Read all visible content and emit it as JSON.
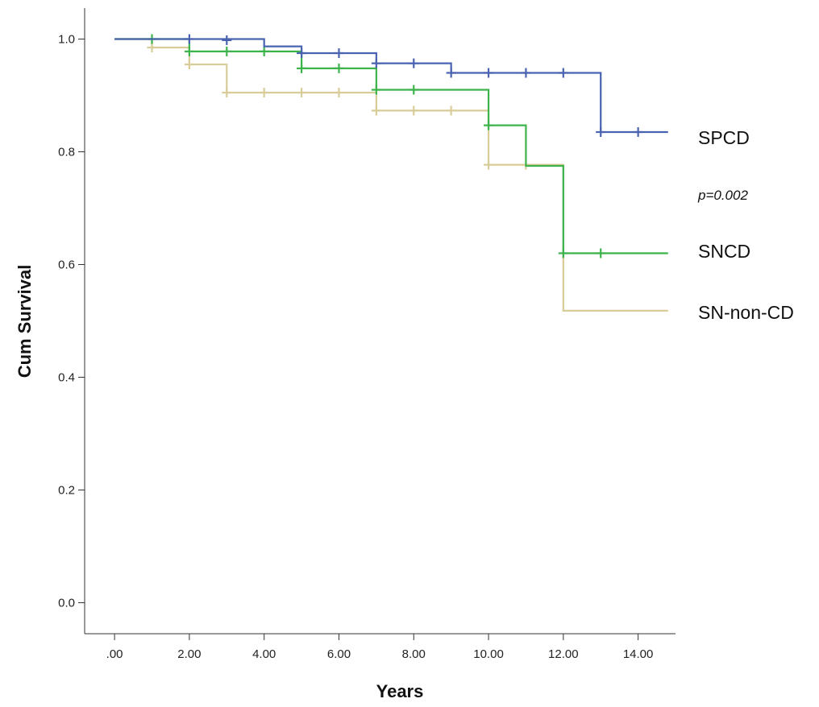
{
  "chart_data": {
    "type": "line",
    "xlabel": "Years",
    "ylabel": "Cum Survival",
    "xlim": [
      -0.8,
      15
    ],
    "ylim": [
      -0.055,
      1.055
    ],
    "x_ticks": [
      0,
      2,
      4,
      6,
      8,
      10,
      12,
      14
    ],
    "x_tick_labels": [
      ".00",
      "2.00",
      "4.00",
      "6.00",
      "8.00",
      "10.00",
      "12.00",
      "14.00"
    ],
    "y_ticks": [
      0,
      0.2,
      0.4,
      0.6,
      0.8,
      1.0
    ],
    "y_tick_labels": [
      "0.0",
      "0.2",
      "0.4",
      "0.6",
      "0.8",
      "1.0"
    ],
    "annotation": "p=0.002",
    "series": [
      {
        "name": "SPCD",
        "color": "#4a63b0",
        "steps": [
          [
            0,
            1.0
          ],
          [
            4,
            0.987
          ],
          [
            5,
            0.975
          ],
          [
            7,
            0.957
          ],
          [
            9,
            0.94
          ],
          [
            13,
            0.835
          ],
          [
            14.8,
            0.835
          ]
        ],
        "censored": [
          [
            2,
            1.0
          ],
          [
            3,
            0.998
          ],
          [
            5,
            0.975
          ],
          [
            6,
            0.975
          ],
          [
            7,
            0.957
          ],
          [
            8,
            0.957
          ],
          [
            9,
            0.94
          ],
          [
            10,
            0.94
          ],
          [
            11,
            0.94
          ],
          [
            12,
            0.94
          ],
          [
            13,
            0.835
          ],
          [
            14,
            0.835
          ]
        ]
      },
      {
        "name": "SNCD",
        "color": "#3cb44b",
        "steps": [
          [
            0,
            1.0
          ],
          [
            2,
            0.978
          ],
          [
            5,
            0.948
          ],
          [
            7,
            0.91
          ],
          [
            10,
            0.847
          ],
          [
            11,
            0.775
          ],
          [
            12,
            0.62
          ],
          [
            14.8,
            0.62
          ]
        ],
        "censored": [
          [
            1,
            1.0
          ],
          [
            2,
            0.978
          ],
          [
            3,
            0.978
          ],
          [
            4,
            0.978
          ],
          [
            5,
            0.948
          ],
          [
            6,
            0.948
          ],
          [
            7,
            0.91
          ],
          [
            8,
            0.91
          ],
          [
            10,
            0.847
          ],
          [
            12,
            0.62
          ],
          [
            13,
            0.62
          ]
        ]
      },
      {
        "name": "SN-non-CD",
        "color": "#d8cc98",
        "steps": [
          [
            0,
            1.0
          ],
          [
            1,
            0.985
          ],
          [
            2,
            0.955
          ],
          [
            3,
            0.905
          ],
          [
            7,
            0.873
          ],
          [
            10,
            0.777
          ],
          [
            12,
            0.518
          ],
          [
            14.8,
            0.518
          ]
        ],
        "censored": [
          [
            1,
            0.985
          ],
          [
            2,
            0.955
          ],
          [
            3,
            0.905
          ],
          [
            4,
            0.905
          ],
          [
            5,
            0.905
          ],
          [
            6,
            0.905
          ],
          [
            7,
            0.873
          ],
          [
            8,
            0.873
          ],
          [
            9,
            0.873
          ],
          [
            10,
            0.777
          ],
          [
            11,
            0.777
          ]
        ]
      }
    ]
  }
}
